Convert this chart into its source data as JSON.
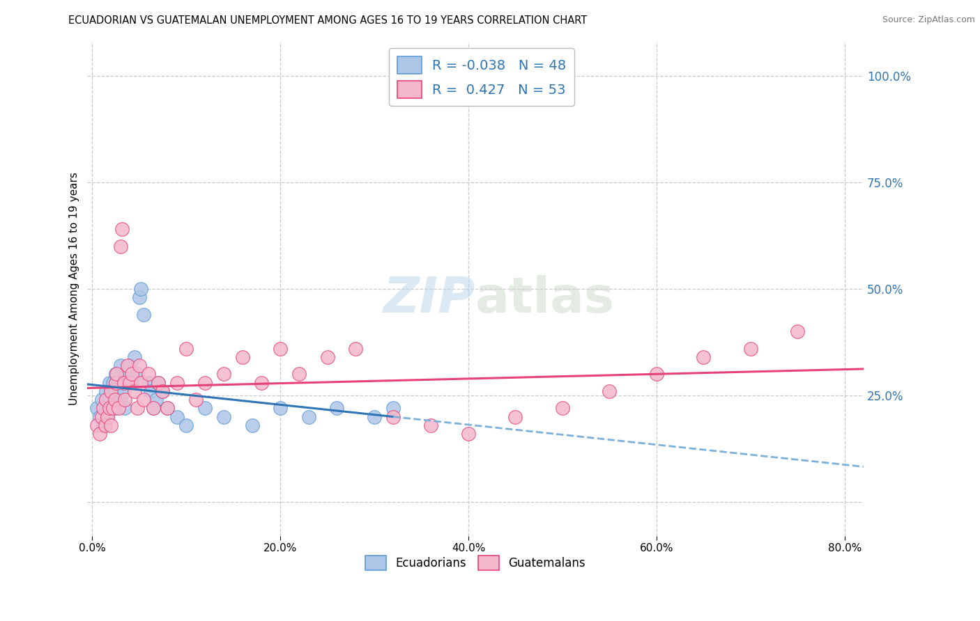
{
  "title": "ECUADORIAN VS GUATEMALAN UNEMPLOYMENT AMONG AGES 16 TO 19 YEARS CORRELATION CHART",
  "source": "Source: ZipAtlas.com",
  "ylabel": "Unemployment Among Ages 16 to 19 years",
  "xlabel_ticks": [
    "0.0%",
    "20.0%",
    "40.0%",
    "60.0%",
    "80.0%"
  ],
  "xlabel_vals": [
    0.0,
    0.2,
    0.4,
    0.6,
    0.8
  ],
  "ylabel_ticks_right": [
    "100.0%",
    "75.0%",
    "50.0%",
    "25.0%"
  ],
  "ylabel_vals_right": [
    1.0,
    0.75,
    0.5,
    0.25
  ],
  "xlim": [
    -0.005,
    0.82
  ],
  "ylim": [
    -0.08,
    1.08
  ],
  "ecu_color": "#aec6e8",
  "gua_color": "#f4b8cc",
  "ecu_edge_color": "#5b9bd5",
  "gua_edge_color": "#e8417a",
  "ecu_line_solid_color": "#2e75b6",
  "ecu_line_dash_color": "#7ab0d9",
  "gua_line_color": "#e8417a",
  "ecu_R": -0.038,
  "ecu_N": 48,
  "gua_R": 0.427,
  "gua_N": 53,
  "ecu_x": [
    0.005,
    0.008,
    0.01,
    0.012,
    0.015,
    0.015,
    0.016,
    0.018,
    0.018,
    0.02,
    0.02,
    0.022,
    0.022,
    0.024,
    0.025,
    0.025,
    0.025,
    0.028,
    0.03,
    0.03,
    0.032,
    0.034,
    0.035,
    0.037,
    0.04,
    0.042,
    0.045,
    0.048,
    0.05,
    0.052,
    0.055,
    0.06,
    0.062,
    0.065,
    0.068,
    0.07,
    0.075,
    0.08,
    0.09,
    0.1,
    0.12,
    0.14,
    0.17,
    0.2,
    0.23,
    0.26,
    0.3,
    0.32
  ],
  "ecu_y": [
    0.22,
    0.2,
    0.24,
    0.18,
    0.26,
    0.22,
    0.2,
    0.24,
    0.28,
    0.22,
    0.26,
    0.25,
    0.28,
    0.22,
    0.3,
    0.26,
    0.24,
    0.28,
    0.32,
    0.24,
    0.28,
    0.26,
    0.22,
    0.3,
    0.32,
    0.28,
    0.34,
    0.3,
    0.48,
    0.5,
    0.44,
    0.28,
    0.26,
    0.22,
    0.24,
    0.28,
    0.26,
    0.22,
    0.2,
    0.18,
    0.22,
    0.2,
    0.18,
    0.22,
    0.2,
    0.22,
    0.2,
    0.22
  ],
  "gua_x": [
    0.005,
    0.008,
    0.01,
    0.012,
    0.014,
    0.015,
    0.016,
    0.018,
    0.02,
    0.02,
    0.022,
    0.024,
    0.025,
    0.026,
    0.028,
    0.03,
    0.032,
    0.034,
    0.035,
    0.038,
    0.04,
    0.042,
    0.045,
    0.048,
    0.05,
    0.052,
    0.055,
    0.06,
    0.065,
    0.07,
    0.075,
    0.08,
    0.09,
    0.1,
    0.11,
    0.12,
    0.14,
    0.16,
    0.18,
    0.2,
    0.22,
    0.25,
    0.28,
    0.32,
    0.36,
    0.4,
    0.45,
    0.5,
    0.55,
    0.6,
    0.65,
    0.7,
    0.75
  ],
  "gua_y": [
    0.18,
    0.16,
    0.2,
    0.22,
    0.18,
    0.24,
    0.2,
    0.22,
    0.26,
    0.18,
    0.22,
    0.24,
    0.28,
    0.3,
    0.22,
    0.6,
    0.64,
    0.28,
    0.24,
    0.32,
    0.28,
    0.3,
    0.26,
    0.22,
    0.32,
    0.28,
    0.24,
    0.3,
    0.22,
    0.28,
    0.26,
    0.22,
    0.28,
    0.36,
    0.24,
    0.28,
    0.3,
    0.34,
    0.28,
    0.36,
    0.3,
    0.34,
    0.36,
    0.2,
    0.18,
    0.16,
    0.2,
    0.22,
    0.26,
    0.3,
    0.34,
    0.36,
    0.4
  ],
  "watermark_zip": "ZIP",
  "watermark_atlas": "atlas",
  "background_color": "#ffffff",
  "grid_color": "#c8c8c8"
}
